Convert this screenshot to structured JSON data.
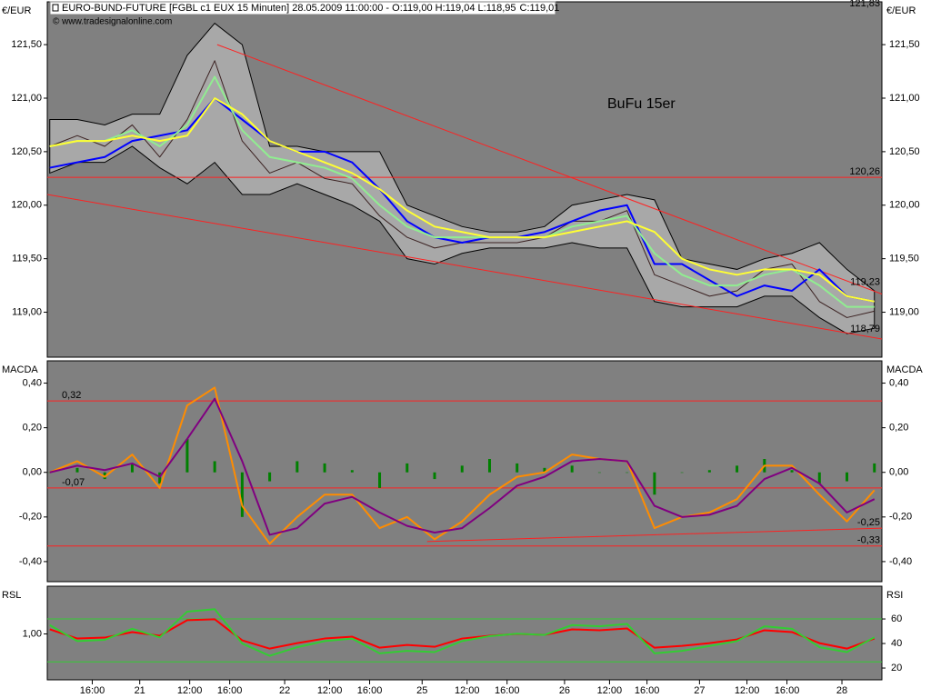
{
  "chart_data": {
    "type": "financial",
    "title": "EURO-BUND-FUTURE [FGBL c1 EUX  15 Minuten] 28.05.2009 11:00:00 - O:119,00 H:119,04 L:118,95",
    "close_label": "C:119,01",
    "close_color": "#00a000",
    "source": "© www.tradesignalonline.com",
    "x": [
      1,
      12,
      23,
      34,
      45,
      56,
      67,
      78,
      89,
      100,
      111,
      122,
      133,
      144,
      155,
      166,
      177,
      188,
      199,
      210,
      221,
      232,
      243,
      254,
      265,
      276,
      287,
      298,
      309,
      320,
      331
    ],
    "xlim": [
      0,
      334
    ],
    "xticks": [
      {
        "value": 18,
        "label": "16:00"
      },
      {
        "value": 37,
        "label": "21"
      },
      {
        "value": 57,
        "label": "12:00"
      },
      {
        "value": 73,
        "label": "16:00"
      },
      {
        "value": 95,
        "label": "22"
      },
      {
        "value": 113,
        "label": "12:00"
      },
      {
        "value": 129,
        "label": "16:00"
      },
      {
        "value": 150,
        "label": "25"
      },
      {
        "value": 168,
        "label": "12:00"
      },
      {
        "value": 184,
        "label": "16:00"
      },
      {
        "value": 207,
        "label": "26"
      },
      {
        "value": 225,
        "label": "12:00"
      },
      {
        "value": 240,
        "label": "16:00"
      },
      {
        "value": 261,
        "label": "27"
      },
      {
        "value": 280,
        "label": "12:00"
      },
      {
        "value": 296,
        "label": "16:00"
      },
      {
        "value": 318,
        "label": "28"
      }
    ],
    "panels": [
      {
        "type": "line",
        "left_label": "€/EUR",
        "right_label": "€/EUR",
        "ylim": [
          118.58,
          121.9
        ],
        "yticks": [
          {
            "value": 121.5,
            "label": "121,50"
          },
          {
            "value": 121,
            "label": "121,00"
          },
          {
            "value": 120.5,
            "label": "120,50"
          },
          {
            "value": 120,
            "label": "120,00"
          },
          {
            "value": 119.5,
            "label": "119,50"
          },
          {
            "value": 119,
            "label": "119,00"
          }
        ],
        "annotation": "BuFu 15er",
        "annotation_color": "#ffff00",
        "band": {
          "color": "#a8a8a8",
          "upper": [
            120.8,
            120.8,
            120.75,
            120.85,
            120.85,
            121.4,
            121.7,
            121.5,
            120.55,
            120.55,
            120.5,
            120.5,
            120.5,
            120.0,
            119.9,
            119.8,
            119.75,
            119.75,
            119.8,
            120.0,
            120.05,
            120.1,
            120.05,
            119.5,
            119.45,
            119.4,
            119.5,
            119.55,
            119.65,
            119.4,
            119.2
          ],
          "lower": [
            120.3,
            120.4,
            120.4,
            120.55,
            120.35,
            120.2,
            120.4,
            120.1,
            120.1,
            120.2,
            120.1,
            120.0,
            119.85,
            119.5,
            119.45,
            119.55,
            119.6,
            119.6,
            119.6,
            119.65,
            119.6,
            119.6,
            119.1,
            119.05,
            119.05,
            119.05,
            119.15,
            119.15,
            118.95,
            118.8,
            118.85
          ]
        },
        "series": [
          {
            "color": "#3a2020",
            "width": 1,
            "values": [
              120.55,
              120.65,
              120.55,
              120.75,
              120.45,
              120.8,
              121.35,
              120.6,
              120.3,
              120.4,
              120.25,
              120.2,
              119.9,
              119.7,
              119.6,
              119.65,
              119.65,
              119.65,
              119.7,
              119.85,
              119.85,
              119.95,
              119.35,
              119.25,
              119.15,
              119.2,
              119.4,
              119.45,
              119.1,
              118.95,
              119.01
            ]
          },
          {
            "color": "#0000ff",
            "width": 2,
            "values": [
              120.35,
              120.4,
              120.45,
              120.6,
              120.65,
              120.7,
              121.0,
              120.8,
              120.6,
              120.5,
              120.5,
              120.4,
              120.15,
              119.85,
              119.7,
              119.65,
              119.7,
              119.7,
              119.75,
              119.85,
              119.95,
              120.0,
              119.45,
              119.45,
              119.3,
              119.15,
              119.25,
              119.2,
              119.4,
              119.15,
              119.1
            ]
          },
          {
            "color": "#90ee90",
            "width": 2,
            "values": [
              120.55,
              120.6,
              120.6,
              120.7,
              120.55,
              120.75,
              121.2,
              120.7,
              120.45,
              120.4,
              120.35,
              120.25,
              120.0,
              119.8,
              119.7,
              119.7,
              119.7,
              119.7,
              119.7,
              119.8,
              119.85,
              119.9,
              119.55,
              119.35,
              119.25,
              119.25,
              119.35,
              119.4,
              119.25,
              119.05,
              119.05
            ]
          },
          {
            "color": "#ffff33",
            "width": 2,
            "values": [
              120.55,
              120.6,
              120.6,
              120.65,
              120.6,
              120.65,
              121.0,
              120.85,
              120.6,
              120.5,
              120.4,
              120.3,
              120.15,
              119.95,
              119.8,
              119.75,
              119.7,
              119.7,
              119.7,
              119.75,
              119.8,
              119.85,
              119.75,
              119.5,
              119.4,
              119.35,
              119.4,
              119.4,
              119.35,
              119.15,
              119.1
            ]
          }
        ],
        "level_color": "#ff2020",
        "levels": [
          {
            "value": 121.83,
            "label": "121,83",
            "line": false,
            "side": "right"
          },
          {
            "value": 120.26,
            "label": "120,26",
            "line": true,
            "side": "right"
          },
          {
            "value": 119.23,
            "label": "119,23",
            "line": false,
            "side": "right"
          },
          {
            "value": 118.79,
            "label": "118,79",
            "line": false,
            "side": "right"
          }
        ],
        "trendlines": [
          {
            "x": [
              68,
              334
            ],
            "values": [
              121.5,
              119.17
            ]
          },
          {
            "x": [
              0,
              334
            ],
            "values": [
              120.1,
              118.75
            ]
          }
        ]
      },
      {
        "type": "line",
        "left_label": "MACDA",
        "right_label": "MACDA",
        "ylim": [
          -0.49,
          0.5
        ],
        "yticks": [
          {
            "value": 0.4,
            "label": "0,40"
          },
          {
            "value": 0.2,
            "label": "0,20"
          },
          {
            "value": 0,
            "label": "0,00"
          },
          {
            "value": -0.2,
            "label": "-0,20"
          },
          {
            "value": -0.4,
            "label": "-0,40"
          }
        ],
        "series": [
          {
            "color": "#008000",
            "style": "histogram",
            "values": [
              0,
              0.02,
              -0.03,
              0.04,
              -0.05,
              0.15,
              0.05,
              -0.2,
              -0.04,
              0.05,
              0.04,
              0.01,
              -0.07,
              0.04,
              -0.03,
              0.03,
              0.06,
              0.04,
              0.02,
              0.03,
              0,
              0,
              -0.1,
              0,
              0.01,
              0.03,
              0.06,
              0.01,
              -0.05,
              -0.04,
              0.04
            ]
          },
          {
            "color": "#ff8c00",
            "width": 2,
            "values": [
              0.0,
              0.05,
              -0.02,
              0.08,
              -0.07,
              0.3,
              0.38,
              -0.15,
              -0.32,
              -0.2,
              -0.1,
              -0.1,
              -0.25,
              -0.2,
              -0.3,
              -0.22,
              -0.1,
              -0.02,
              0.0,
              0.08,
              0.06,
              0.05,
              -0.25,
              -0.2,
              -0.18,
              -0.12,
              0.03,
              0.03,
              -0.1,
              -0.22,
              -0.08
            ]
          },
          {
            "color": "#800080",
            "width": 2,
            "values": [
              0.0,
              0.03,
              0.01,
              0.04,
              -0.02,
              0.15,
              0.33,
              0.05,
              -0.28,
              -0.25,
              -0.14,
              -0.11,
              -0.18,
              -0.24,
              -0.27,
              -0.25,
              -0.16,
              -0.06,
              -0.02,
              0.05,
              0.06,
              0.05,
              -0.15,
              -0.2,
              -0.19,
              -0.15,
              -0.03,
              0.02,
              -0.05,
              -0.18,
              -0.12
            ]
          }
        ],
        "level_color": "#ff2020",
        "levels": [
          {
            "value": 0.32,
            "label": "0,32",
            "line": true,
            "side": "left"
          },
          {
            "value": -0.07,
            "label": "-0,07",
            "line": true,
            "side": "left"
          },
          {
            "value": -0.25,
            "label": "-0,25",
            "line": false,
            "side": "right"
          },
          {
            "value": -0.33,
            "label": "-0,33",
            "line": true,
            "side": "right"
          }
        ],
        "trendlines": [
          {
            "x": [
              152,
              334
            ],
            "values": [
              -0.31,
              -0.25
            ]
          }
        ]
      },
      {
        "type": "line",
        "left_label": "RSL",
        "right_label": "RSI",
        "ylim": [
          0.95,
          1.052
        ],
        "yticks": [
          {
            "value": 1,
            "label": "1,00"
          }
        ],
        "y2lim": [
          10.4,
          86.7
        ],
        "y2ticks": [
          20,
          40,
          60
        ],
        "series": [
          {
            "color": "#ff0000",
            "width": 2,
            "values": [
              1.005,
              0.995,
              0.996,
              1.002,
              0.998,
              1.015,
              1.016,
              0.993,
              0.984,
              0.99,
              0.995,
              0.997,
              0.985,
              0.988,
              0.986,
              0.995,
              0.998,
              1.0,
              0.999,
              1.005,
              1.004,
              1.006,
              0.985,
              0.987,
              0.99,
              0.994,
              1.004,
              1.002,
              0.99,
              0.984,
              0.995
            ]
          },
          {
            "color": "#33cc33",
            "width": 2,
            "axis": "y2",
            "values": [
              55,
              42,
              43,
              52,
              45,
              66,
              68,
              40,
              30,
              37,
              42,
              44,
              32,
              34,
              33,
              42,
              46,
              48,
              47,
              55,
              54,
              56,
              32,
              34,
              38,
              42,
              54,
              52,
              37,
              33,
              45
            ]
          }
        ],
        "level_color": "#33cc33",
        "levels": [
          {
            "value": 60,
            "axis": "y2",
            "line": true
          },
          {
            "value": 25,
            "axis": "y2",
            "line": true
          }
        ]
      }
    ]
  }
}
